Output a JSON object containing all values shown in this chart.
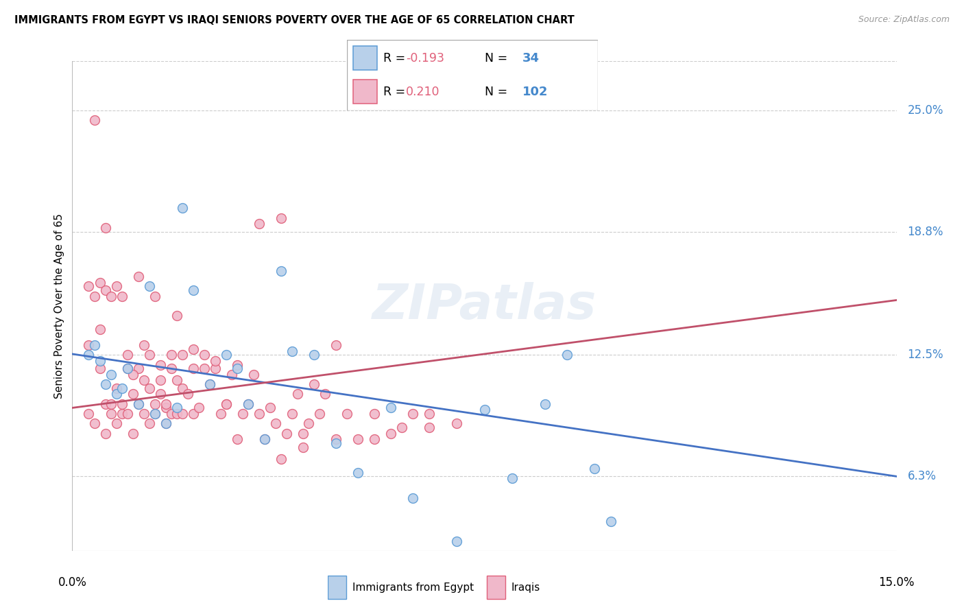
{
  "title": "IMMIGRANTS FROM EGYPT VS IRAQI SENIORS POVERTY OVER THE AGE OF 65 CORRELATION CHART",
  "source": "Source: ZipAtlas.com",
  "ylabel": "Seniors Poverty Over the Age of 65",
  "ytick_labels": [
    "6.3%",
    "12.5%",
    "18.8%",
    "25.0%"
  ],
  "ytick_values": [
    0.063,
    0.125,
    0.188,
    0.25
  ],
  "xmin": 0.0,
  "xmax": 0.15,
  "ymin": 0.025,
  "ymax": 0.275,
  "watermark": "ZIPatlas",
  "egypt_color": "#b8d0ea",
  "iraqi_color": "#f0b8ca",
  "egypt_edge_color": "#5b9bd5",
  "iraqi_edge_color": "#e0607a",
  "egypt_line_color": "#4472c4",
  "iraqi_line_color": "#c0506a",
  "egypt_R": -0.193,
  "egypt_N": 34,
  "iraqi_R": 0.21,
  "iraqi_N": 102,
  "egypt_line_x0": 0.0,
  "egypt_line_y0": 0.1255,
  "egypt_line_x1": 0.15,
  "egypt_line_y1": 0.063,
  "iraqi_line_x0": 0.0,
  "iraqi_line_y0": 0.098,
  "iraqi_line_x1": 0.15,
  "iraqi_line_y1": 0.153,
  "egypt_scatter_x": [
    0.003,
    0.004,
    0.005,
    0.006,
    0.007,
    0.008,
    0.009,
    0.01,
    0.012,
    0.014,
    0.015,
    0.017,
    0.019,
    0.02,
    0.022,
    0.025,
    0.028,
    0.03,
    0.032,
    0.035,
    0.038,
    0.04,
    0.044,
    0.048,
    0.052,
    0.058,
    0.062,
    0.07,
    0.075,
    0.08,
    0.086,
    0.09,
    0.095,
    0.098
  ],
  "egypt_scatter_y": [
    0.125,
    0.13,
    0.122,
    0.11,
    0.115,
    0.105,
    0.108,
    0.118,
    0.1,
    0.16,
    0.095,
    0.09,
    0.098,
    0.2,
    0.158,
    0.11,
    0.125,
    0.118,
    0.1,
    0.082,
    0.168,
    0.127,
    0.125,
    0.08,
    0.065,
    0.098,
    0.052,
    0.03,
    0.097,
    0.062,
    0.1,
    0.125,
    0.067,
    0.04
  ],
  "iraqi_scatter_x": [
    0.003,
    0.003,
    0.004,
    0.004,
    0.005,
    0.005,
    0.006,
    0.006,
    0.007,
    0.007,
    0.008,
    0.008,
    0.009,
    0.009,
    0.01,
    0.01,
    0.011,
    0.011,
    0.012,
    0.012,
    0.013,
    0.013,
    0.014,
    0.014,
    0.015,
    0.015,
    0.016,
    0.016,
    0.017,
    0.017,
    0.018,
    0.018,
    0.019,
    0.019,
    0.02,
    0.02,
    0.021,
    0.022,
    0.022,
    0.023,
    0.024,
    0.025,
    0.026,
    0.027,
    0.028,
    0.029,
    0.03,
    0.031,
    0.032,
    0.033,
    0.034,
    0.035,
    0.036,
    0.037,
    0.038,
    0.039,
    0.04,
    0.041,
    0.042,
    0.043,
    0.044,
    0.045,
    0.046,
    0.048,
    0.05,
    0.052,
    0.055,
    0.058,
    0.062,
    0.065,
    0.003,
    0.004,
    0.005,
    0.006,
    0.006,
    0.007,
    0.008,
    0.009,
    0.01,
    0.011,
    0.012,
    0.013,
    0.014,
    0.015,
    0.016,
    0.017,
    0.018,
    0.019,
    0.02,
    0.022,
    0.024,
    0.026,
    0.028,
    0.03,
    0.034,
    0.038,
    0.042,
    0.048,
    0.055,
    0.06,
    0.065,
    0.07
  ],
  "iraqi_scatter_y": [
    0.095,
    0.13,
    0.09,
    0.245,
    0.118,
    0.138,
    0.085,
    0.1,
    0.1,
    0.095,
    0.09,
    0.108,
    0.095,
    0.1,
    0.118,
    0.095,
    0.085,
    0.105,
    0.1,
    0.118,
    0.095,
    0.112,
    0.09,
    0.108,
    0.095,
    0.1,
    0.105,
    0.112,
    0.09,
    0.098,
    0.118,
    0.095,
    0.112,
    0.095,
    0.108,
    0.095,
    0.105,
    0.095,
    0.118,
    0.098,
    0.118,
    0.11,
    0.118,
    0.095,
    0.1,
    0.115,
    0.082,
    0.095,
    0.1,
    0.115,
    0.095,
    0.082,
    0.098,
    0.09,
    0.072,
    0.085,
    0.095,
    0.105,
    0.078,
    0.09,
    0.11,
    0.095,
    0.105,
    0.082,
    0.095,
    0.082,
    0.095,
    0.085,
    0.095,
    0.088,
    0.16,
    0.155,
    0.162,
    0.19,
    0.158,
    0.155,
    0.16,
    0.155,
    0.125,
    0.115,
    0.165,
    0.13,
    0.125,
    0.155,
    0.12,
    0.1,
    0.125,
    0.145,
    0.125,
    0.128,
    0.125,
    0.122,
    0.1,
    0.12,
    0.192,
    0.195,
    0.085,
    0.13,
    0.082,
    0.088,
    0.095,
    0.09
  ]
}
